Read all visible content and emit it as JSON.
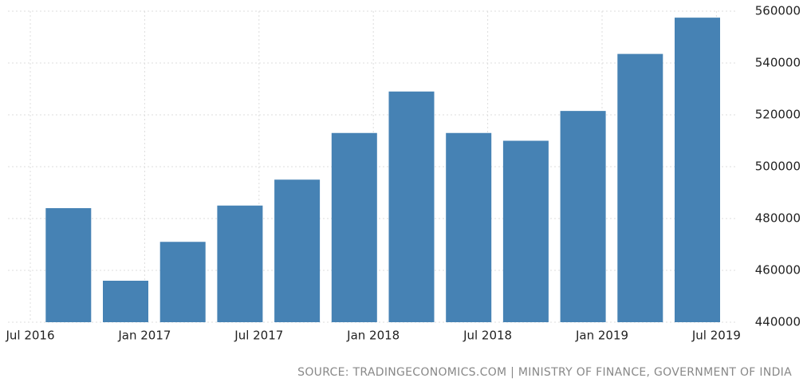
{
  "chart_data": {
    "type": "bar",
    "categories": [
      "Jul 2016",
      null,
      null,
      null,
      null,
      null,
      "Jan 2017",
      null,
      null,
      null,
      null,
      null,
      "Jul 2017",
      null,
      null,
      null,
      null,
      null,
      "Jan 2018",
      null,
      null,
      null,
      null,
      null,
      "Jul 2018",
      null,
      null,
      null,
      null,
      null,
      "Jan 2019",
      null,
      null,
      null,
      null,
      null,
      "Jul 2019"
    ],
    "values": [
      null,
      null,
      484000,
      null,
      null,
      456000,
      null,
      null,
      471000,
      null,
      null,
      485000,
      null,
      null,
      495000,
      null,
      null,
      513000,
      null,
      null,
      529000,
      null,
      null,
      513000,
      null,
      null,
      510000,
      null,
      null,
      521500,
      null,
      null,
      543500,
      null,
      null,
      557500,
      null
    ],
    "color": "#4682b4",
    "ylim": [
      440000,
      560000
    ],
    "yticks": [
      440000,
      460000,
      480000,
      500000,
      520000,
      540000,
      560000
    ],
    "grid": true,
    "source": "SOURCE: TRADINGECONOMICS.COM | MINISTRY OF FINANCE, GOVERNMENT OF INDIA"
  }
}
